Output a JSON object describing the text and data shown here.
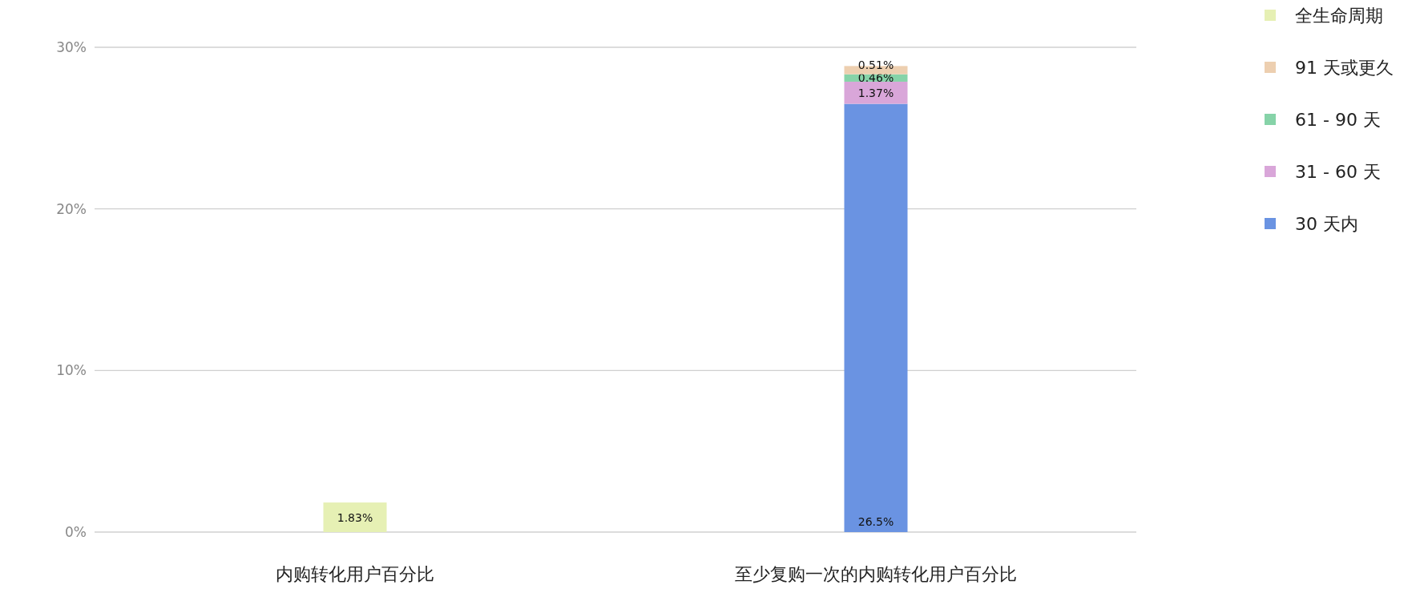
{
  "chart_data": {
    "type": "bar",
    "stacked": true,
    "categories": [
      "内购转化用户百分比",
      "至少复购一次的内购转化用户百分比"
    ],
    "series": [
      {
        "name": "30 天内",
        "color": "#6a93e2",
        "values": [
          null,
          26.5
        ],
        "value_labels": [
          null,
          "26.5%"
        ]
      },
      {
        "name": "31 - 60 天",
        "color": "#d9a6d9",
        "values": [
          null,
          1.37
        ],
        "value_labels": [
          null,
          "1.37%"
        ]
      },
      {
        "name": "61 - 90 天",
        "color": "#86d3a8",
        "values": [
          null,
          0.46
        ],
        "value_labels": [
          null,
          "0.46%"
        ]
      },
      {
        "name": "91 天或更久",
        "color": "#edcfb0",
        "values": [
          null,
          0.51
        ],
        "value_labels": [
          null,
          "0.51%"
        ]
      },
      {
        "name": "全生命周期",
        "color": "#e6f0b4",
        "values": [
          1.83,
          null
        ],
        "value_labels": [
          "1.83%",
          null
        ]
      }
    ],
    "ylim": [
      0,
      30
    ],
    "yticks": [
      {
        "value": 0,
        "label": "0%"
      },
      {
        "value": 10,
        "label": "10%"
      },
      {
        "value": 20,
        "label": "20%"
      },
      {
        "value": 30,
        "label": "30%"
      }
    ],
    "grid": "y",
    "legend": "top right"
  }
}
